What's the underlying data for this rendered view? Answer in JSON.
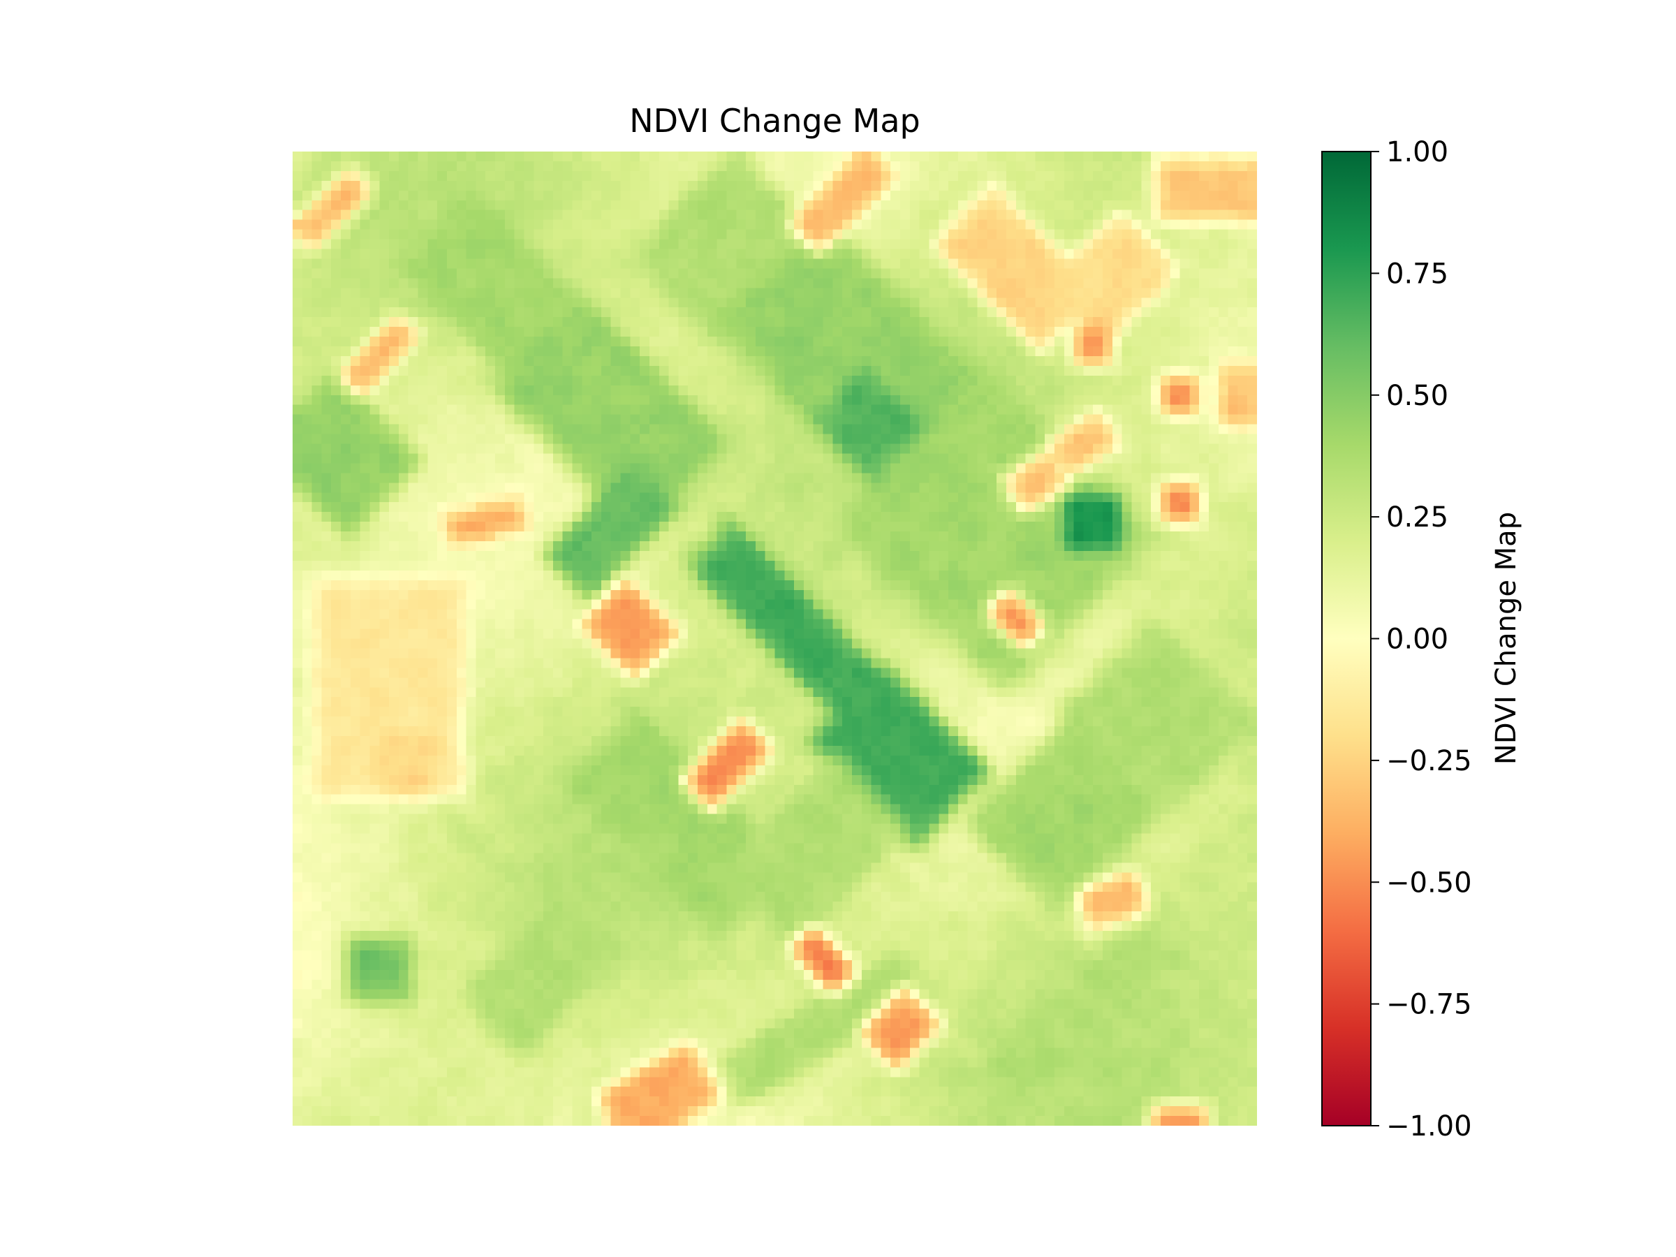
{
  "chart_data": {
    "type": "heatmap",
    "title": "NDVI Change Map",
    "colormap": "RdYlGn",
    "vmin": -1.0,
    "vmax": 1.0,
    "grid": false,
    "axes_visible": false,
    "colorbar": {
      "label": "NDVI Change Map",
      "placement": "right",
      "ticks": [
        {
          "value": 1.0,
          "label": "1.00"
        },
        {
          "value": 0.75,
          "label": "0.75"
        },
        {
          "value": 0.5,
          "label": "0.50"
        },
        {
          "value": 0.25,
          "label": "0.25"
        },
        {
          "value": 0.0,
          "label": "0.00"
        },
        {
          "value": -0.25,
          "label": "−0.25"
        },
        {
          "value": -0.5,
          "label": "−0.50"
        },
        {
          "value": -0.75,
          "label": "−0.75"
        },
        {
          "value": -1.0,
          "label": "−1.00"
        }
      ]
    },
    "grid_size": [
      100,
      100
    ],
    "background_value": 0.2,
    "patches": [
      {
        "cx": 0.21,
        "cy": 0.14,
        "w": 0.1,
        "h": 0.16,
        "angle": -45,
        "value": 0.4
      },
      {
        "cx": 0.33,
        "cy": 0.27,
        "w": 0.12,
        "h": 0.2,
        "angle": -45,
        "value": 0.45
      },
      {
        "cx": 0.45,
        "cy": 0.1,
        "w": 0.14,
        "h": 0.12,
        "angle": -45,
        "value": 0.35
      },
      {
        "cx": 0.59,
        "cy": 0.22,
        "w": 0.14,
        "h": 0.24,
        "angle": -45,
        "value": 0.45
      },
      {
        "cx": 0.6,
        "cy": 0.28,
        "w": 0.07,
        "h": 0.08,
        "angle": -45,
        "value": 0.65
      },
      {
        "cx": 0.05,
        "cy": 0.31,
        "w": 0.1,
        "h": 0.12,
        "angle": -45,
        "value": 0.45
      },
      {
        "cx": 0.33,
        "cy": 0.39,
        "w": 0.12,
        "h": 0.06,
        "angle": -45,
        "value": 0.6
      },
      {
        "cx": 0.52,
        "cy": 0.49,
        "w": 0.06,
        "h": 0.22,
        "angle": -45,
        "value": 0.7
      },
      {
        "cx": 0.63,
        "cy": 0.62,
        "w": 0.1,
        "h": 0.14,
        "angle": -45,
        "value": 0.7
      },
      {
        "cx": 0.73,
        "cy": 0.39,
        "w": 0.2,
        "h": 0.22,
        "angle": -45,
        "value": 0.4
      },
      {
        "cx": 0.83,
        "cy": 0.38,
        "w": 0.05,
        "h": 0.05,
        "angle": 0,
        "value": 0.8
      },
      {
        "cx": 0.9,
        "cy": 0.58,
        "w": 0.12,
        "h": 0.14,
        "angle": -45,
        "value": 0.35
      },
      {
        "cx": 0.8,
        "cy": 0.68,
        "w": 0.14,
        "h": 0.12,
        "angle": -45,
        "value": 0.4
      },
      {
        "cx": 0.4,
        "cy": 0.69,
        "w": 0.1,
        "h": 0.2,
        "angle": -45,
        "value": 0.4
      },
      {
        "cx": 0.54,
        "cy": 0.72,
        "w": 0.16,
        "h": 0.1,
        "angle": -45,
        "value": 0.35
      },
      {
        "cx": 0.26,
        "cy": 0.84,
        "w": 0.14,
        "h": 0.08,
        "angle": -45,
        "value": 0.35
      },
      {
        "cx": 0.09,
        "cy": 0.84,
        "w": 0.06,
        "h": 0.06,
        "angle": 0,
        "value": 0.55
      },
      {
        "cx": 0.55,
        "cy": 0.9,
        "w": 0.2,
        "h": 0.05,
        "angle": -30,
        "value": 0.35
      },
      {
        "cx": 0.82,
        "cy": 0.88,
        "w": 0.2,
        "h": 0.05,
        "angle": -40,
        "value": 0.35
      },
      {
        "cx": 0.04,
        "cy": 0.06,
        "w": 0.08,
        "h": 0.03,
        "angle": -45,
        "value": -0.35
      },
      {
        "cx": 0.57,
        "cy": 0.05,
        "w": 0.1,
        "h": 0.04,
        "angle": -45,
        "value": -0.35
      },
      {
        "cx": 0.75,
        "cy": 0.12,
        "w": 0.08,
        "h": 0.14,
        "angle": -45,
        "value": -0.25
      },
      {
        "cx": 0.85,
        "cy": 0.13,
        "w": 0.1,
        "h": 0.08,
        "angle": -45,
        "value": -0.2
      },
      {
        "cx": 0.95,
        "cy": 0.04,
        "w": 0.1,
        "h": 0.06,
        "angle": 0,
        "value": -0.3
      },
      {
        "cx": 0.83,
        "cy": 0.2,
        "w": 0.04,
        "h": 0.04,
        "angle": 0,
        "value": -0.45
      },
      {
        "cx": 0.92,
        "cy": 0.25,
        "w": 0.04,
        "h": 0.04,
        "angle": 0,
        "value": -0.45
      },
      {
        "cx": 0.09,
        "cy": 0.21,
        "w": 0.08,
        "h": 0.03,
        "angle": -45,
        "value": -0.35
      },
      {
        "cx": 0.2,
        "cy": 0.38,
        "w": 0.07,
        "h": 0.03,
        "angle": -15,
        "value": -0.4
      },
      {
        "cx": 0.35,
        "cy": 0.49,
        "w": 0.06,
        "h": 0.07,
        "angle": -45,
        "value": -0.45
      },
      {
        "cx": 0.77,
        "cy": 0.34,
        "w": 0.05,
        "h": 0.04,
        "angle": -30,
        "value": -0.3
      },
      {
        "cx": 0.82,
        "cy": 0.3,
        "w": 0.06,
        "h": 0.04,
        "angle": -30,
        "value": -0.3
      },
      {
        "cx": 0.92,
        "cy": 0.36,
        "w": 0.04,
        "h": 0.04,
        "angle": 0,
        "value": -0.5
      },
      {
        "cx": 0.75,
        "cy": 0.48,
        "w": 0.03,
        "h": 0.05,
        "angle": -45,
        "value": -0.45
      },
      {
        "cx": 0.45,
        "cy": 0.63,
        "w": 0.08,
        "h": 0.04,
        "angle": -45,
        "value": -0.5
      },
      {
        "cx": 0.1,
        "cy": 0.55,
        "w": 0.14,
        "h": 0.2,
        "angle": 0,
        "value": -0.15
      },
      {
        "cx": 0.12,
        "cy": 0.63,
        "w": 0.06,
        "h": 0.05,
        "angle": 0,
        "value": -0.25
      },
      {
        "cx": 0.85,
        "cy": 0.77,
        "w": 0.06,
        "h": 0.04,
        "angle": -20,
        "value": -0.35
      },
      {
        "cx": 0.55,
        "cy": 0.83,
        "w": 0.03,
        "h": 0.06,
        "angle": -45,
        "value": -0.55
      },
      {
        "cx": 0.63,
        "cy": 0.9,
        "w": 0.06,
        "h": 0.05,
        "angle": -45,
        "value": -0.45
      },
      {
        "cx": 0.38,
        "cy": 0.97,
        "w": 0.1,
        "h": 0.06,
        "angle": -30,
        "value": -0.4
      },
      {
        "cx": 0.92,
        "cy": 0.99,
        "w": 0.05,
        "h": 0.02,
        "angle": 0,
        "value": -0.45
      },
      {
        "cx": 0.98,
        "cy": 0.25,
        "w": 0.04,
        "h": 0.06,
        "angle": 0,
        "value": -0.3
      }
    ]
  }
}
